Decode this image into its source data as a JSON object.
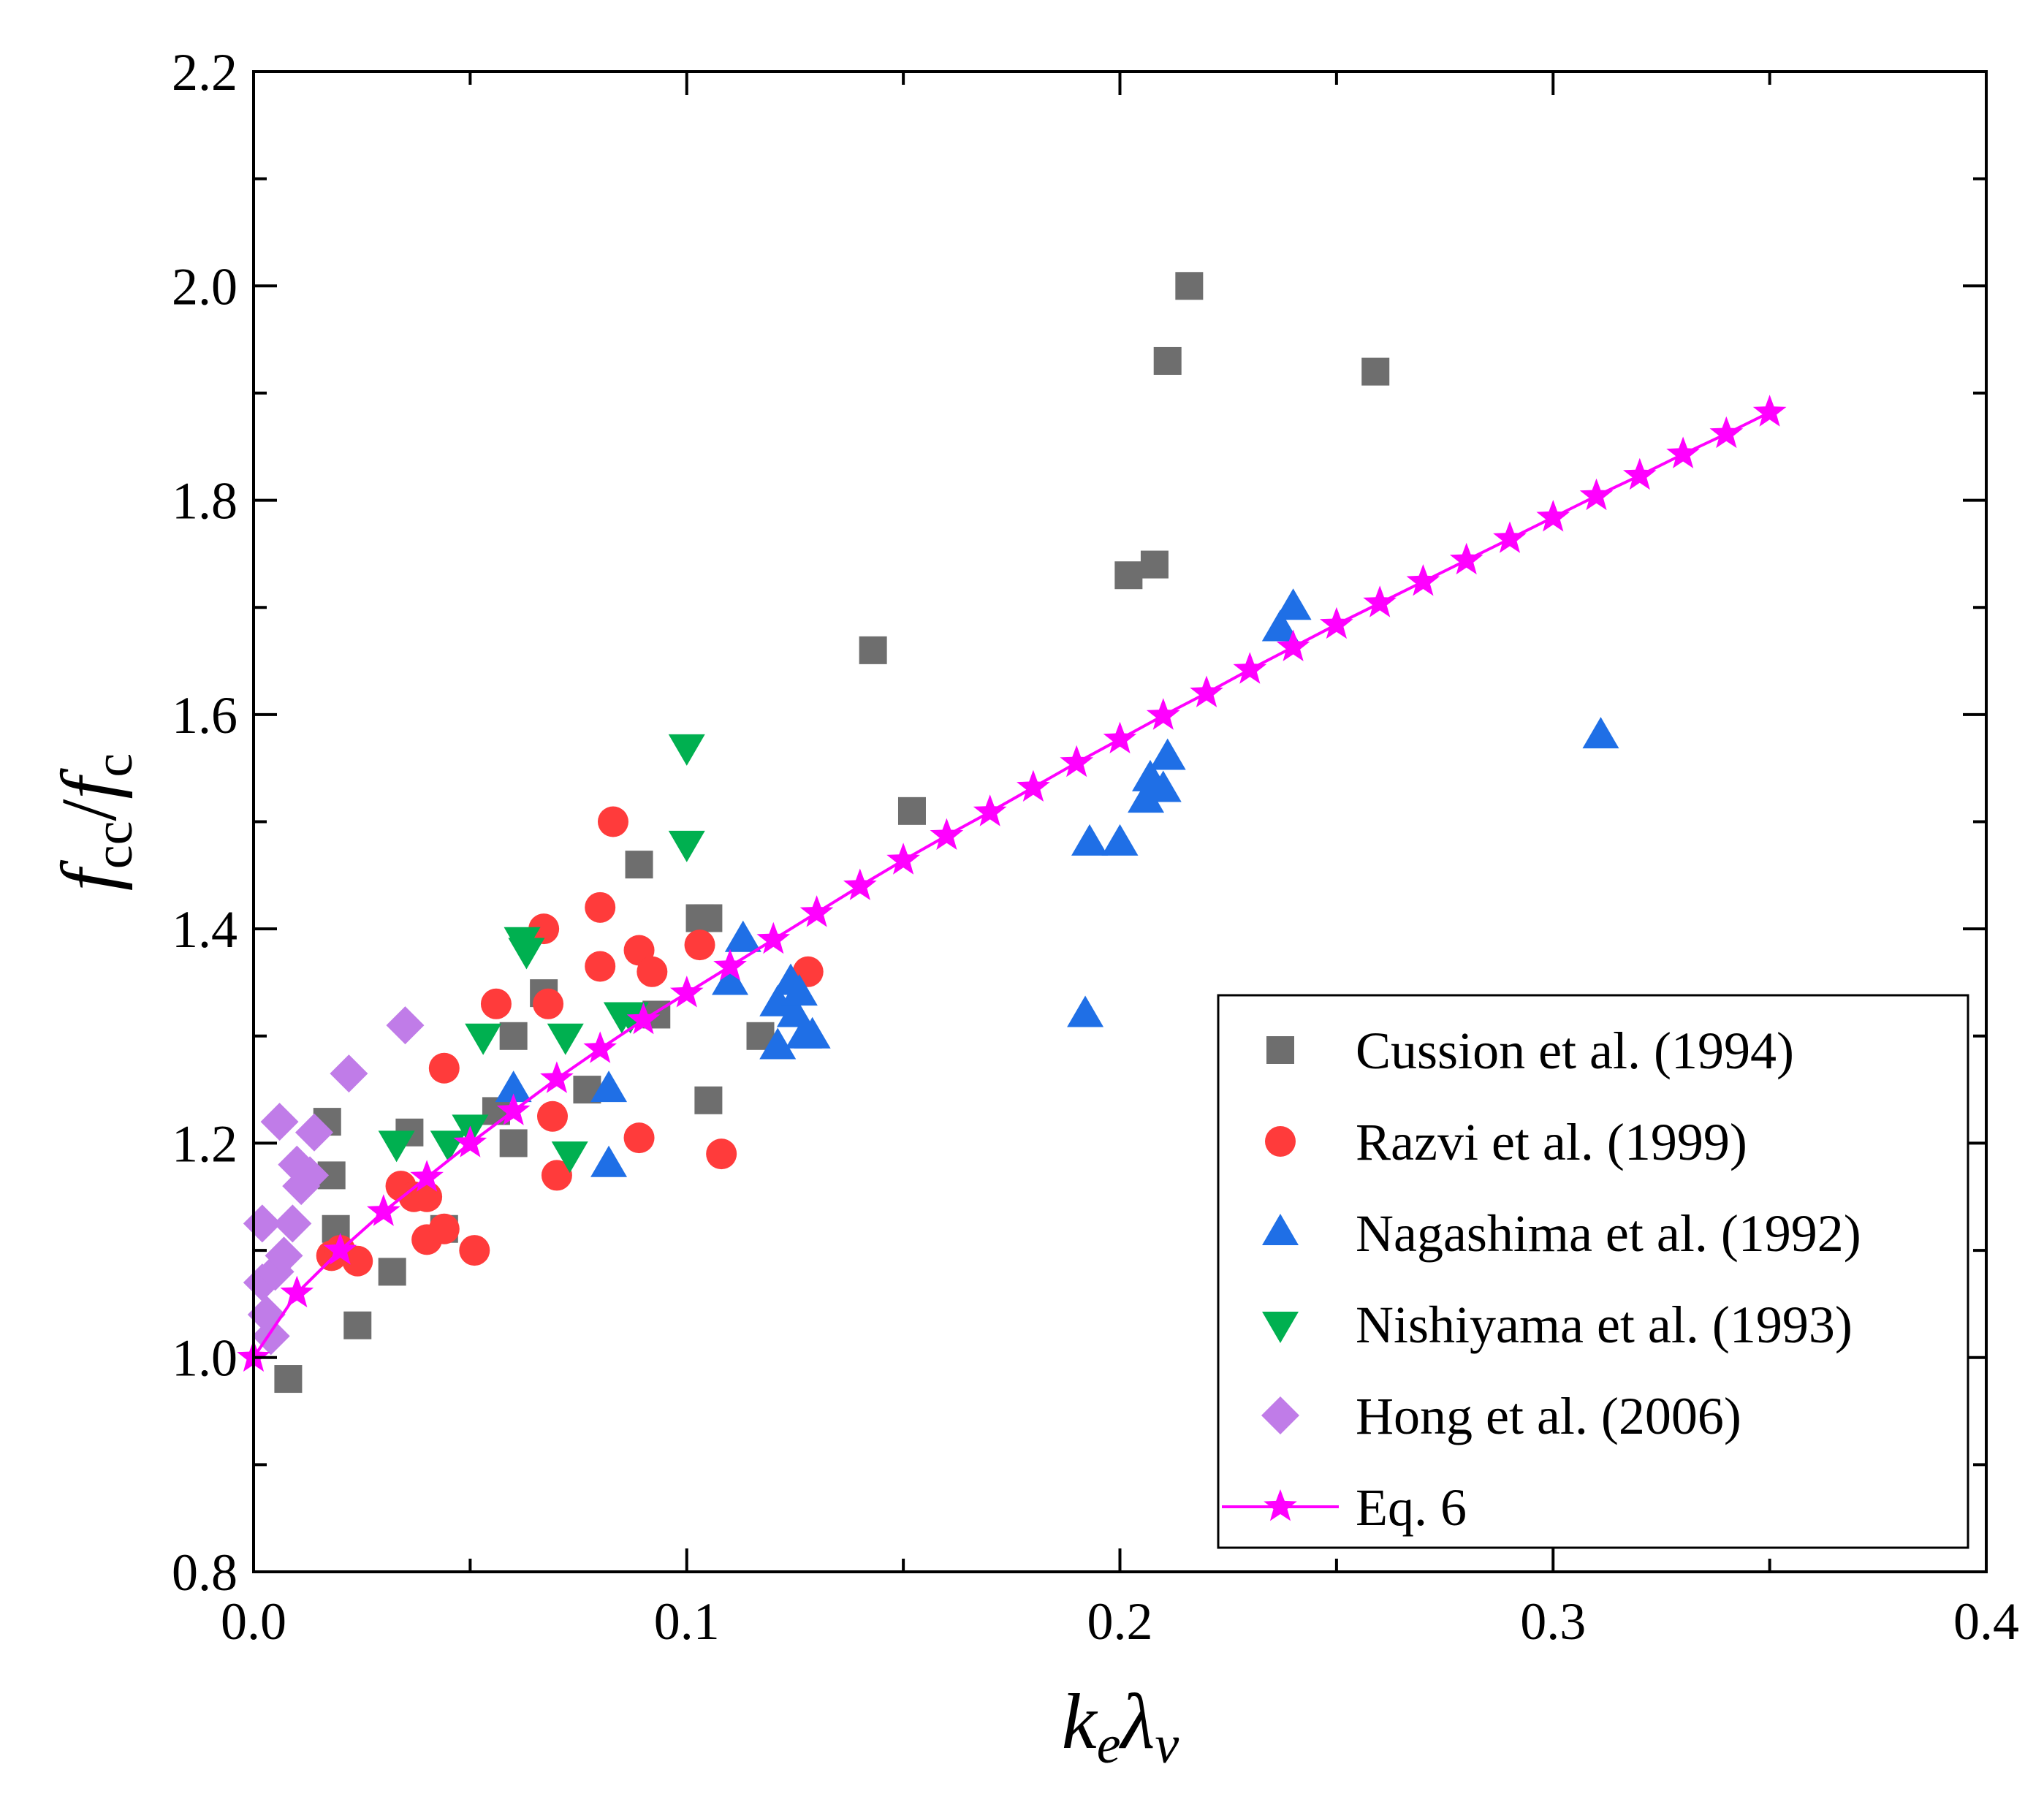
{
  "chart_data": {
    "type": "scatter",
    "title": "",
    "xlabel_parts": {
      "main": "k",
      "sub1": "e",
      "mid": "λ",
      "sub2": "v"
    },
    "ylabel_parts": {
      "f1": "f",
      "sub1": "cc",
      "slash": "/",
      "f2": "f",
      "sub2": "c"
    },
    "xlim": [
      0.0,
      0.4
    ],
    "ylim": [
      0.8,
      2.2
    ],
    "xticks": [
      0.0,
      0.1,
      0.2,
      0.3,
      0.4
    ],
    "xtick_labels": [
      "0.0",
      "0.1",
      "0.2",
      "0.3",
      "0.4"
    ],
    "yticks": [
      0.8,
      1.0,
      1.2,
      1.4,
      1.6,
      1.8,
      2.0,
      2.2
    ],
    "ytick_labels": [
      "0.8",
      "1.0",
      "1.2",
      "1.4",
      "1.6",
      "1.8",
      "2.0",
      "2.2"
    ],
    "grid": false,
    "legend_position": "bottom-right",
    "series": [
      {
        "name": "Cussion et al. (1994)",
        "marker": "square",
        "color": "#6e6e6e",
        "points": [
          [
            0.008,
            0.98
          ],
          [
            0.017,
            1.22
          ],
          [
            0.018,
            1.17
          ],
          [
            0.019,
            1.12
          ],
          [
            0.024,
            1.03
          ],
          [
            0.032,
            1.08
          ],
          [
            0.036,
            1.21
          ],
          [
            0.044,
            1.12
          ],
          [
            0.056,
            1.23
          ],
          [
            0.06,
            1.3
          ],
          [
            0.06,
            1.2
          ],
          [
            0.067,
            1.34
          ],
          [
            0.077,
            1.25
          ],
          [
            0.089,
            1.46
          ],
          [
            0.093,
            1.32
          ],
          [
            0.103,
            1.41
          ],
          [
            0.105,
            1.41
          ],
          [
            0.105,
            1.24
          ],
          [
            0.117,
            1.3
          ],
          [
            0.143,
            1.66
          ],
          [
            0.152,
            1.51
          ],
          [
            0.202,
            1.73
          ],
          [
            0.208,
            1.74
          ],
          [
            0.211,
            1.93
          ],
          [
            0.216,
            2.0
          ],
          [
            0.259,
            1.92
          ]
        ]
      },
      {
        "name": "Razvi et al. (1999)",
        "marker": "circle",
        "color": "#ff3b3b",
        "points": [
          [
            0.018,
            1.095
          ],
          [
            0.02,
            1.1
          ],
          [
            0.024,
            1.09
          ],
          [
            0.034,
            1.16
          ],
          [
            0.037,
            1.15
          ],
          [
            0.04,
            1.15
          ],
          [
            0.04,
            1.11
          ],
          [
            0.044,
            1.12
          ],
          [
            0.044,
            1.27
          ],
          [
            0.051,
            1.1
          ],
          [
            0.056,
            1.33
          ],
          [
            0.067,
            1.4
          ],
          [
            0.068,
            1.33
          ],
          [
            0.069,
            1.225
          ],
          [
            0.07,
            1.17
          ],
          [
            0.08,
            1.365
          ],
          [
            0.08,
            1.42
          ],
          [
            0.083,
            1.5
          ],
          [
            0.089,
            1.38
          ],
          [
            0.089,
            1.205
          ],
          [
            0.092,
            1.36
          ],
          [
            0.103,
            1.385
          ],
          [
            0.108,
            1.19
          ],
          [
            0.128,
            1.36
          ]
        ]
      },
      {
        "name": "Nagashima et al. (1992)",
        "marker": "triangle-up",
        "color": "#1f6fe6",
        "points": [
          [
            0.06,
            1.25
          ],
          [
            0.082,
            1.18
          ],
          [
            0.082,
            1.25
          ],
          [
            0.11,
            1.35
          ],
          [
            0.113,
            1.39
          ],
          [
            0.121,
            1.29
          ],
          [
            0.121,
            1.33
          ],
          [
            0.124,
            1.35
          ],
          [
            0.125,
            1.32
          ],
          [
            0.126,
            1.34
          ],
          [
            0.127,
            1.3
          ],
          [
            0.129,
            1.3
          ],
          [
            0.192,
            1.32
          ],
          [
            0.193,
            1.48
          ],
          [
            0.2,
            1.48
          ],
          [
            0.206,
            1.52
          ],
          [
            0.207,
            1.54
          ],
          [
            0.21,
            1.53
          ],
          [
            0.211,
            1.56
          ],
          [
            0.237,
            1.68
          ],
          [
            0.24,
            1.7
          ],
          [
            0.311,
            1.58
          ]
        ]
      },
      {
        "name": "Nishiyama et al. (1993)",
        "marker": "triangle-down",
        "color": "#00b050",
        "points": [
          [
            0.033,
            1.2
          ],
          [
            0.045,
            1.2
          ],
          [
            0.05,
            1.215
          ],
          [
            0.053,
            1.3
          ],
          [
            0.062,
            1.39
          ],
          [
            0.063,
            1.38
          ],
          [
            0.072,
            1.3
          ],
          [
            0.073,
            1.19
          ],
          [
            0.085,
            1.32
          ],
          [
            0.087,
            1.32
          ],
          [
            0.1,
            1.57
          ],
          [
            0.1,
            1.48
          ]
        ]
      },
      {
        "name": "Hong et al. (2006)",
        "marker": "diamond",
        "color": "#c07ce8",
        "points": [
          [
            0.002,
            1.125
          ],
          [
            0.002,
            1.07
          ],
          [
            0.003,
            1.04
          ],
          [
            0.004,
            1.02
          ],
          [
            0.005,
            1.08
          ],
          [
            0.006,
            1.22
          ],
          [
            0.007,
            1.095
          ],
          [
            0.009,
            1.125
          ],
          [
            0.01,
            1.18
          ],
          [
            0.011,
            1.16
          ],
          [
            0.013,
            1.17
          ],
          [
            0.014,
            1.21
          ],
          [
            0.022,
            1.265
          ],
          [
            0.035,
            1.31
          ]
        ]
      },
      {
        "name": "Eq. 6",
        "marker": "star-line",
        "color": "#ff00ff",
        "points": [
          [
            0.0,
            1.0
          ],
          [
            0.01,
            1.06
          ],
          [
            0.02,
            1.1
          ],
          [
            0.03,
            1.136
          ],
          [
            0.04,
            1.168
          ],
          [
            0.05,
            1.2
          ],
          [
            0.06,
            1.23
          ],
          [
            0.07,
            1.26
          ],
          [
            0.08,
            1.288
          ],
          [
            0.09,
            1.315
          ],
          [
            0.1,
            1.34
          ],
          [
            0.11,
            1.365
          ],
          [
            0.12,
            1.39
          ],
          [
            0.13,
            1.415
          ],
          [
            0.14,
            1.44
          ],
          [
            0.15,
            1.464
          ],
          [
            0.16,
            1.487
          ],
          [
            0.17,
            1.509
          ],
          [
            0.18,
            1.532
          ],
          [
            0.19,
            1.555
          ],
          [
            0.2,
            1.577
          ],
          [
            0.21,
            1.599
          ],
          [
            0.22,
            1.62
          ],
          [
            0.23,
            1.642
          ],
          [
            0.24,
            1.663
          ],
          [
            0.25,
            1.684
          ],
          [
            0.26,
            1.704
          ],
          [
            0.27,
            1.724
          ],
          [
            0.28,
            1.744
          ],
          [
            0.29,
            1.764
          ],
          [
            0.3,
            1.784
          ],
          [
            0.31,
            1.804
          ],
          [
            0.32,
            1.823
          ],
          [
            0.33,
            1.843
          ],
          [
            0.34,
            1.862
          ],
          [
            0.35,
            1.882
          ]
        ]
      }
    ]
  }
}
